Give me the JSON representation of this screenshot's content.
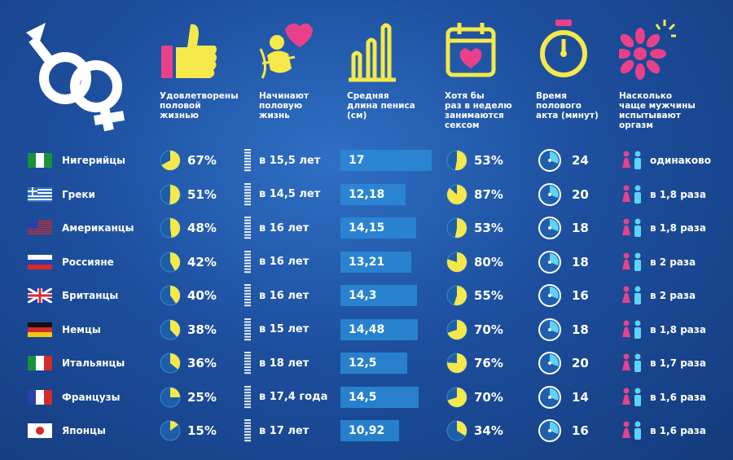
{
  "headers": [
    {
      "label": "Удовлетворены\nполовой\nжизнью",
      "icon": "thumbs-up-icon"
    },
    {
      "label": "Начинают\nполовую\nжизнь",
      "icon": "cupid-icon"
    },
    {
      "label": "Средняя\nдлина пениса\n(см)",
      "icon": "bar-chart-icon"
    },
    {
      "label": "Хотя бы\nраз в неделю\nзанимаются\nсексом",
      "icon": "calendar-heart-icon"
    },
    {
      "label": "Время\nполового\nакта (минут)",
      "icon": "stopwatch-icon"
    },
    {
      "label": "Насколько\nчаще мужчины\nиспытывают\nоргазм",
      "icon": "flower-burst-icon"
    }
  ],
  "colors": {
    "accent_yellow": "#f5e84a",
    "accent_pink": "#e8418a",
    "accent_cyan": "#5fd3f5",
    "bar": "#2a8ad6",
    "bg": "#1d4f9e"
  },
  "chart_data": {
    "type": "table",
    "columns": [
      "Удовлетворены половой жизнью",
      "Начинают половую жизнь",
      "Средняя длина пениса (см)",
      "Хотя бы раз в неделю занимаются сексом",
      "Время полового акта (минут)",
      "Насколько чаще мужчины испытывают оргазм"
    ],
    "rows": [
      {
        "flag": "nigeria",
        "country": "Нигерийцы",
        "satisfied": 67,
        "satisfied_label": "67%",
        "age": "в 15,5 лет",
        "length": 17,
        "length_label": "17",
        "weekly": 53,
        "weekly_label": "53%",
        "minutes": "24",
        "orgasm": "одинаково"
      },
      {
        "flag": "greece",
        "country": "Греки",
        "satisfied": 51,
        "satisfied_label": "51%",
        "age": "в 14,5 лет",
        "length": 12.18,
        "length_label": "12,18",
        "weekly": 87,
        "weekly_label": "87%",
        "minutes": "20",
        "orgasm": "в 1,8 раза"
      },
      {
        "flag": "usa",
        "country": "Американцы",
        "satisfied": 48,
        "satisfied_label": "48%",
        "age": "в 16 лет",
        "length": 14.15,
        "length_label": "14,15",
        "weekly": 53,
        "weekly_label": "53%",
        "minutes": "18",
        "orgasm": "в 1,8 раза"
      },
      {
        "flag": "russia",
        "country": "Россияне",
        "satisfied": 42,
        "satisfied_label": "42%",
        "age": "в 16 лет",
        "length": 13.21,
        "length_label": "13,21",
        "weekly": 80,
        "weekly_label": "80%",
        "minutes": "18",
        "orgasm": "в 2 раза"
      },
      {
        "flag": "uk",
        "country": "Британцы",
        "satisfied": 40,
        "satisfied_label": "40%",
        "age": "в 16 лет",
        "length": 14.3,
        "length_label": "14,3",
        "weekly": 55,
        "weekly_label": "55%",
        "minutes": "16",
        "orgasm": "в 2 раза"
      },
      {
        "flag": "germany",
        "country": "Немцы",
        "satisfied": 38,
        "satisfied_label": "38%",
        "age": "в 15 лет",
        "length": 14.48,
        "length_label": "14,48",
        "weekly": 70,
        "weekly_label": "70%",
        "minutes": "18",
        "orgasm": "в 1,8 раза"
      },
      {
        "flag": "italy",
        "country": "Итальянцы",
        "satisfied": 36,
        "satisfied_label": "36%",
        "age": "в 18 лет",
        "length": 12.5,
        "length_label": "12,5",
        "weekly": 76,
        "weekly_label": "76%",
        "minutes": "20",
        "orgasm": "в 1,7 раза"
      },
      {
        "flag": "france",
        "country": "Французы",
        "satisfied": 25,
        "satisfied_label": "25%",
        "age": "в 17,4 года",
        "length": 14.5,
        "length_label": "14,5",
        "weekly": 70,
        "weekly_label": "70%",
        "minutes": "14",
        "orgasm": "в 1,6 раза"
      },
      {
        "flag": "japan",
        "country": "Японцы",
        "satisfied": 15,
        "satisfied_label": "15%",
        "age": "в 17 лет",
        "length": 10.92,
        "length_label": "10,92",
        "weekly": 34,
        "weekly_label": "34%",
        "minutes": "16",
        "orgasm": "в 1,6 раза"
      }
    ]
  }
}
